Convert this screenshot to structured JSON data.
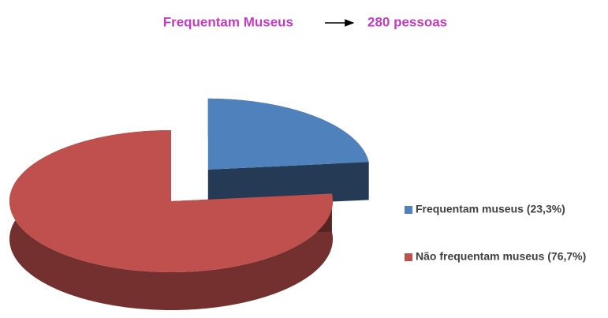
{
  "chart_data": {
    "type": "pie3d",
    "title": "Frequentam Museus",
    "annotation": "280 pessoas",
    "series": [
      {
        "name": "Frequentam museus (23,3%)",
        "color": "#4f81bd",
        "value": 23.3,
        "exploded": true
      },
      {
        "name": "Não frequentam museus (76,7%)",
        "color": "#c0504d",
        "value": 76.7,
        "exploded": false
      }
    ],
    "legend": "right"
  }
}
